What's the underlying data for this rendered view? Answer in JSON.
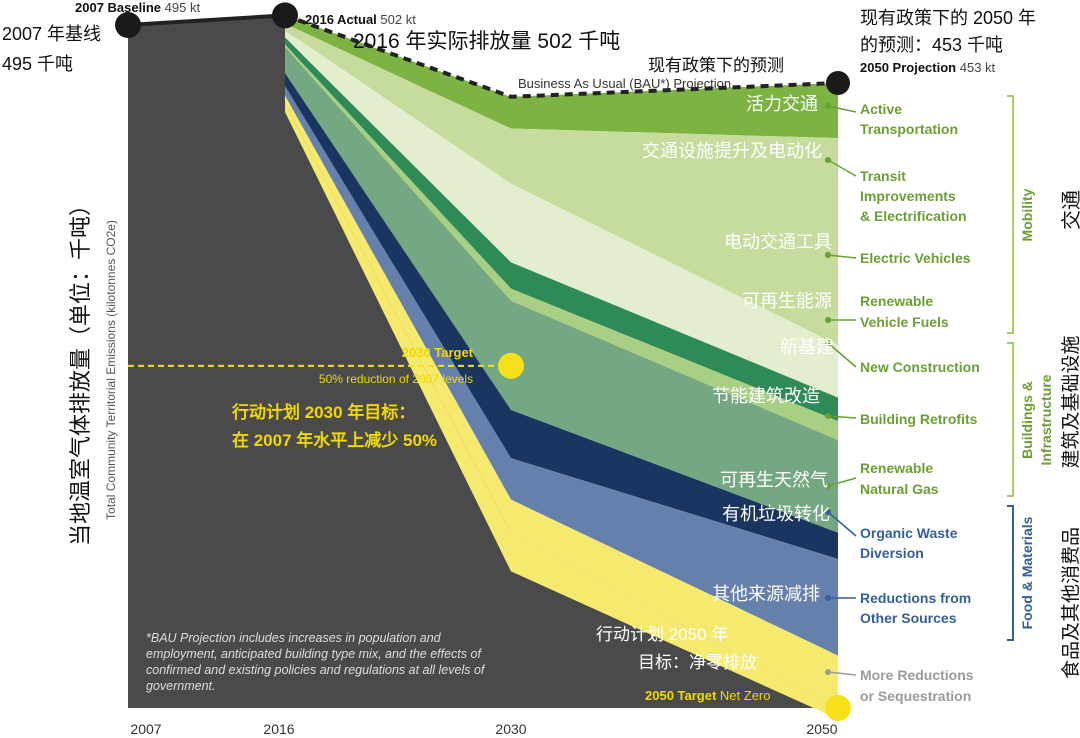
{
  "colors": {
    "historical": "#4a4a4a",
    "active_transportation": "#7cb342",
    "transit_improvements": "#c5dc9c",
    "electric_vehicles": "#e3eecf",
    "renewable_vehicle_fuels": "#2e8b57",
    "new_construction": "#a8cf84",
    "building_retrofits": "#74a883",
    "renewable_natural_gas": "#1a3560",
    "organic_waste_diversion": "#6580ab",
    "other_sources": "#f6ea6e",
    "more_reductions": "#ffffff",
    "target_marker": "#f5e01a",
    "label_green": "#6aa033",
    "label_blue": "#355f99",
    "label_gray": "#9b9b9b",
    "cn_yellow": "#f0d800"
  },
  "chart_data": {
    "type": "area",
    "title": "",
    "ylabel": "Total Community Territorial Emissions (kilotonnes CO2e)",
    "ylabel_cn": "当地温室气体排放量（单位：千吨）",
    "x_ticks": [
      "2007",
      "2016",
      "2030",
      "2050"
    ],
    "ylim": [
      0,
      503
    ],
    "historical": [
      {
        "year": 2007,
        "value": 495
      },
      {
        "year": 2016,
        "value": 502
      }
    ],
    "bau_projection": [
      {
        "year": 2016,
        "value": 502
      },
      {
        "year": 2030,
        "value": 443
      },
      {
        "year": 2050,
        "value": 453
      }
    ],
    "series": [
      {
        "name": "Active Transportation",
        "name_cn": "活力交通",
        "values": {
          "2016": 502,
          "2030": 443,
          "2050": 453
        }
      },
      {
        "name": "Transit Improvements & Electrification",
        "name_cn": "交通设施提升及电动化",
        "values": {
          "2016": 496,
          "2030": 420,
          "2050": 413
        }
      },
      {
        "name": "Electric Vehicles",
        "name_cn": "电动交通工具",
        "values": {
          "2016": 491,
          "2030": 380,
          "2050": 263
        }
      },
      {
        "name": "Renewable Vehicle Fuels",
        "name_cn": "可再生能源",
        "values": {
          "2016": 486,
          "2030": 323,
          "2050": 225
        }
      },
      {
        "name": "Building Retrofits",
        "name_cn": "节能建筑改造",
        "values": {
          "2016": 481,
          "2030": 304,
          "2050": 208
        }
      },
      {
        "name": "Renewable Natural Gas",
        "name_cn": "可再生天然气",
        "values": {
          "2016": 460,
          "2030": 216,
          "2050": 127
        }
      },
      {
        "name": "Organic Waste Diversion",
        "name_cn": "有机垃圾转化",
        "values": {
          "2016": 451,
          "2030": 181,
          "2050": 108
        }
      },
      {
        "name": "Reductions from Other Sources",
        "name_cn": "其他来源减排",
        "values": {
          "2016": 444,
          "2030": 151,
          "2050": 38
        }
      },
      {
        "name": "More Reductions or Sequestration",
        "values": {
          "2016": 438,
          "2030": 127,
          "2050": 0
        }
      }
    ],
    "targets": [
      {
        "year": 2030,
        "value": 248
      },
      {
        "year": 2050,
        "value": 0
      }
    ]
  },
  "annotations": {
    "baseline_bold": "2007 Baseline",
    "baseline_value": "495 kt",
    "baseline_cn_line1": "2007 年基线",
    "baseline_cn_line2": "495 千吨",
    "actual_bold": "2016 Actual",
    "actual_value": "502 kt",
    "actual_cn": "2016 年实际排放量 502 千吨",
    "bau_cn": "现有政策下的预测",
    "bau_label": "Business As Usual (BAU*) Projection",
    "proj_cn_line1": "现有政策下的 2050 年",
    "proj_cn_line2": "的预测：453 千吨",
    "proj_bold": "2050 Projection",
    "proj_value": "453 kt",
    "target2030_bold": "2030 Target",
    "target2030_sub": "50% reduction of 2007 levels",
    "target2030_cn_line1": "行动计划 2030 年目标：",
    "target2030_cn_line2": "在 2007 年水平上减少 50%",
    "target2050_cn_line1": "行动计划 2050 年",
    "target2050_cn_line2": "目标：净零排放",
    "target2050_bold": "2050 Target",
    "target2050_value": "Net Zero",
    "bau_note_line1": "*BAU Projection includes increases in population and",
    "bau_note_line2": "employment, anticipated building type mix, and the effects of",
    "bau_note_line3": "confirmed and existing policies and regulations at all levels of",
    "bau_note_line4": "government."
  },
  "area_labels_cn": {
    "active_transportation": "活力交通",
    "transit_improvements": "交通设施提升及电动化",
    "electric_vehicles": "电动交通工具",
    "renewable_fuels": "可再生能源",
    "new_construction": "新基建",
    "building_retrofits": "节能建筑改造",
    "renewable_gas": "可再生天然气",
    "organic_waste": "有机垃圾转化",
    "other_sources": "其他来源减排"
  },
  "legend": {
    "active_transportation": [
      "Active",
      "Transportation"
    ],
    "transit_improvements": [
      "Transit",
      "Improvements",
      "& Electrification"
    ],
    "electric_vehicles": [
      "Electric Vehicles"
    ],
    "renewable_vehicle_fuels": [
      "Renewable",
      "Vehicle Fuels"
    ],
    "new_construction": [
      "New Construction"
    ],
    "building_retrofits": [
      "Building Retrofits"
    ],
    "renewable_natural_gas": [
      "Renewable",
      "Natural Gas"
    ],
    "organic_waste_diversion": [
      "Organic Waste",
      "Diversion"
    ],
    "other_sources": [
      "Reductions from",
      "Other Sources"
    ],
    "more_reductions": [
      "More Reductions",
      "or Sequestration"
    ]
  },
  "groups": {
    "mobility": "Mobility",
    "mobility_cn": "交通",
    "buildings_line1": "Buildings &",
    "buildings_line2": "Infrastructure",
    "buildings_cn": "建筑及基础设施",
    "food": "Food & Materials",
    "food_cn": "食品及其他消费品"
  }
}
